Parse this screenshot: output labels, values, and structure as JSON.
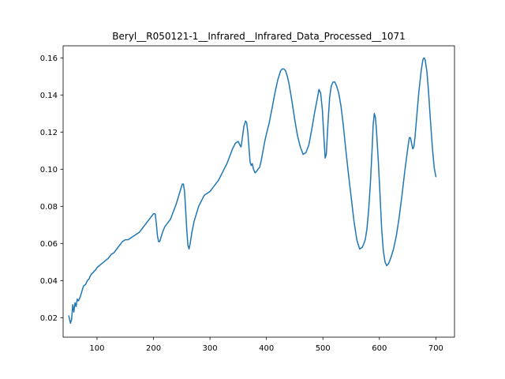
{
  "chart_data": {
    "type": "line",
    "title": "Beryl__R050121-1__Infrared__Infrared_Data_Processed__1071",
    "xlabel": "",
    "ylabel": "",
    "xlim": [
      40,
      733
    ],
    "ylim": [
      0.0095,
      0.1665
    ],
    "xticks": [
      100,
      200,
      300,
      400,
      500,
      600,
      700
    ],
    "yticks": [
      0.02,
      0.04,
      0.06,
      0.08,
      0.1,
      0.12,
      0.14,
      0.16
    ],
    "grid": false,
    "legend": "none",
    "series": [
      {
        "name": "Beryl R050121-1 infrared",
        "color": "#1f77b4",
        "x": [
          50,
          53,
          55,
          57,
          59,
          61,
          63,
          65,
          67,
          70,
          73,
          76,
          80,
          83,
          86,
          89,
          92,
          95,
          98,
          100,
          104,
          108,
          112,
          116,
          120,
          125,
          130,
          135,
          140,
          145,
          150,
          155,
          160,
          165,
          170,
          175,
          180,
          185,
          190,
          195,
          200,
          203,
          205,
          207,
          209,
          211,
          213,
          216,
          220,
          225,
          230,
          235,
          240,
          244,
          248,
          251,
          253,
          255,
          257,
          259,
          261,
          263,
          265,
          268,
          272,
          276,
          280,
          285,
          290,
          295,
          300,
          305,
          310,
          315,
          320,
          325,
          330,
          335,
          340,
          345,
          350,
          353,
          355,
          357,
          360,
          363,
          365,
          367,
          369,
          371,
          373,
          375,
          377,
          380,
          383,
          385,
          388,
          391,
          394,
          397,
          400,
          405,
          410,
          415,
          420,
          425,
          428,
          431,
          434,
          437,
          440,
          445,
          450,
          455,
          460,
          465,
          470,
          475,
          480,
          485,
          490,
          493,
          496,
          499,
          502,
          504,
          506,
          509,
          512,
          515,
          518,
          521,
          524,
          528,
          532,
          536,
          540,
          545,
          550,
          555,
          560,
          565,
          570,
          575,
          578,
          581,
          584,
          587,
          589,
          591,
          593,
          595,
          598,
          601,
          604,
          607,
          610,
          613,
          616,
          620,
          625,
          630,
          635,
          640,
          645,
          648,
          651,
          653,
          655,
          657,
          659,
          661,
          663,
          666,
          670,
          674,
          677,
          679,
          681,
          684,
          687,
          690,
          694,
          697,
          700
        ],
        "y": [
          0.021,
          0.017,
          0.019,
          0.027,
          0.023,
          0.028,
          0.026,
          0.03,
          0.029,
          0.031,
          0.034,
          0.037,
          0.038,
          0.04,
          0.041,
          0.043,
          0.044,
          0.045,
          0.046,
          0.047,
          0.048,
          0.049,
          0.05,
          0.051,
          0.052,
          0.054,
          0.055,
          0.057,
          0.059,
          0.061,
          0.062,
          0.062,
          0.063,
          0.064,
          0.065,
          0.066,
          0.068,
          0.07,
          0.072,
          0.074,
          0.076,
          0.076,
          0.071,
          0.064,
          0.061,
          0.061,
          0.063,
          0.066,
          0.069,
          0.071,
          0.073,
          0.077,
          0.081,
          0.085,
          0.089,
          0.092,
          0.092,
          0.088,
          0.078,
          0.067,
          0.059,
          0.057,
          0.06,
          0.066,
          0.072,
          0.076,
          0.08,
          0.083,
          0.086,
          0.087,
          0.088,
          0.09,
          0.092,
          0.094,
          0.097,
          0.1,
          0.103,
          0.107,
          0.111,
          0.114,
          0.115,
          0.113,
          0.112,
          0.116,
          0.123,
          0.126,
          0.125,
          0.12,
          0.112,
          0.104,
          0.102,
          0.103,
          0.1,
          0.098,
          0.099,
          0.1,
          0.101,
          0.105,
          0.11,
          0.115,
          0.119,
          0.125,
          0.133,
          0.141,
          0.148,
          0.153,
          0.154,
          0.154,
          0.153,
          0.15,
          0.146,
          0.137,
          0.127,
          0.118,
          0.112,
          0.108,
          0.109,
          0.113,
          0.121,
          0.13,
          0.138,
          0.143,
          0.141,
          0.132,
          0.116,
          0.106,
          0.108,
          0.125,
          0.139,
          0.145,
          0.147,
          0.147,
          0.145,
          0.141,
          0.134,
          0.124,
          0.112,
          0.098,
          0.085,
          0.072,
          0.062,
          0.057,
          0.058,
          0.062,
          0.068,
          0.078,
          0.092,
          0.11,
          0.124,
          0.13,
          0.128,
          0.12,
          0.105,
          0.087,
          0.068,
          0.056,
          0.05,
          0.048,
          0.049,
          0.052,
          0.057,
          0.064,
          0.074,
          0.086,
          0.099,
          0.106,
          0.113,
          0.117,
          0.117,
          0.114,
          0.111,
          0.112,
          0.117,
          0.128,
          0.142,
          0.153,
          0.159,
          0.16,
          0.159,
          0.153,
          0.142,
          0.128,
          0.111,
          0.101,
          0.096
        ]
      }
    ]
  }
}
